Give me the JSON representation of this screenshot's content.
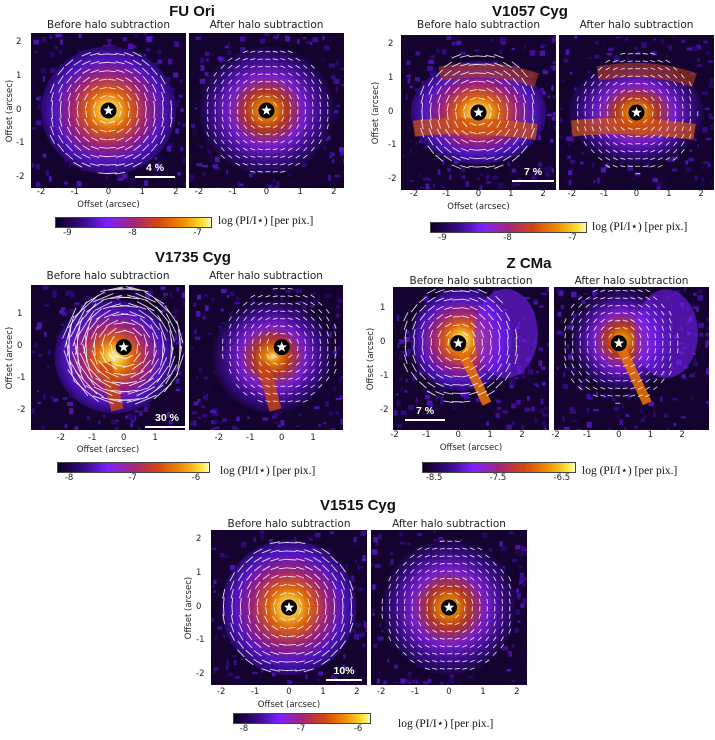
{
  "panels": [
    {
      "title": "FU Ori",
      "before_label": "Before halo subtraction",
      "after_label": "After halo subtraction",
      "x_label": "Offset (arcsec)",
      "y_label": "Offset (arcsec)",
      "x_ticks": [
        "-2",
        "-1",
        "0",
        "1",
        "2"
      ],
      "y_ticks": [
        "2",
        "1",
        "0",
        "-1",
        "-2"
      ],
      "scale_bar": "4 %",
      "colorbar_ticks": [
        "-9",
        "-8",
        "-7"
      ],
      "colorbar_label": "log (PI/I⋆) [per pix.]"
    },
    {
      "title": "V1057 Cyg",
      "before_label": "Before halo subtraction",
      "after_label": "After halo subtraction",
      "x_label": "Offset (arcsec)",
      "y_label": "Offset (arcsec)",
      "x_ticks": [
        "-2",
        "-1",
        "0",
        "1",
        "2"
      ],
      "y_ticks": [
        "2",
        "1",
        "0",
        "-1",
        "-2"
      ],
      "scale_bar": "7 %",
      "colorbar_ticks": [
        "-9",
        "-8",
        "-7"
      ],
      "colorbar_label": "log (PI/I⋆) [per pix.]"
    },
    {
      "title": "V1735 Cyg",
      "before_label": "Before halo subtraction",
      "after_label": "After halo subtraction",
      "x_label": "Offset (arcsec)",
      "y_label": "Offset (arcsec)",
      "x_ticks": [
        "-2",
        "-1",
        "0",
        "1"
      ],
      "y_ticks": [
        "1",
        "0",
        "-1",
        "-2"
      ],
      "scale_bar": "30 %",
      "colorbar_ticks": [
        "-8",
        "-7",
        "-6"
      ],
      "colorbar_label": "log (PI/I⋆) [per pix.]"
    },
    {
      "title": "Z CMa",
      "before_label": "Before halo subtraction",
      "after_label": "After halo subtraction",
      "x_label": "Offset (arcsec)",
      "y_label": "Offset (arcsec)",
      "x_ticks": [
        "-2",
        "-1",
        "0",
        "1",
        "2"
      ],
      "y_ticks": [
        "1",
        "0",
        "-1",
        "-2"
      ],
      "scale_bar": "7 %",
      "colorbar_ticks": [
        "-8.5",
        "-7.5",
        "-6.5"
      ],
      "colorbar_label": "log (PI/I⋆) [per pix.]"
    },
    {
      "title": "V1515 Cyg",
      "before_label": "Before halo subtraction",
      "after_label": "After halo subtraction",
      "x_label": "Offset (arcsec)",
      "y_label": "Offset (arcsec)",
      "x_ticks": [
        "-2",
        "-1",
        "0",
        "1",
        "2"
      ],
      "y_ticks": [
        "2",
        "1",
        "0",
        "-1",
        "-2"
      ],
      "scale_bar": "10%",
      "colorbar_ticks": [
        "-8",
        "-7",
        "-6"
      ],
      "colorbar_label": "log (PI/I⋆) [per pix.]"
    }
  ],
  "colormap": [
    "#0b0020",
    "#3b0a8c",
    "#7a22ff",
    "#a4247a",
    "#d24510",
    "#f08e00",
    "#ffe23a",
    "#fffac0"
  ]
}
